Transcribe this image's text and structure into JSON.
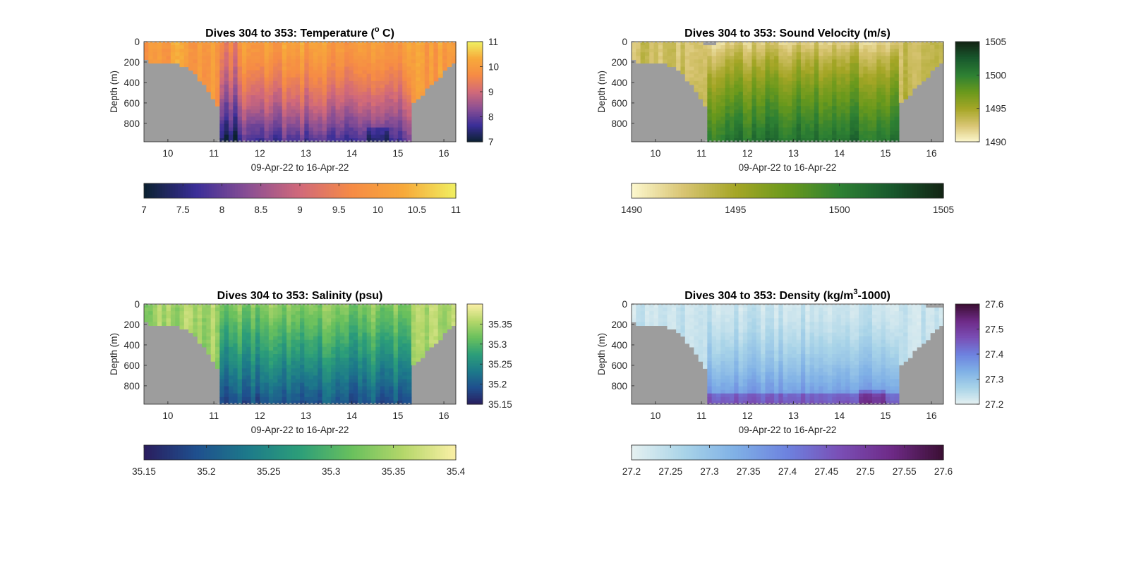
{
  "chart_data": [
    {
      "type": "heatmap",
      "title": "Dives 304 to 353: Temperature (",
      "title_sup": "o",
      "title_tail": " C)",
      "xlabel": "09-Apr-22 to 16-Apr-22",
      "ylabel": "Depth (m)",
      "xlim": [
        9.48,
        16.26
      ],
      "ylim": [
        0,
        980
      ],
      "y_reversed": true,
      "x_ticks": [
        "10",
        "11",
        "12",
        "13",
        "14",
        "15",
        "16"
      ],
      "y_ticks": [
        "0",
        "200",
        "400",
        "600",
        "800"
      ],
      "colormap": [
        "#0b2130",
        "#3a2e98",
        "#8a4f94",
        "#d1697a",
        "#f68b45",
        "#f7a93a",
        "#f0ef61"
      ],
      "clim": [
        7,
        11
      ],
      "field": "temperature",
      "colorbar_right": {
        "ticks": [
          "7",
          "8",
          "9",
          "10",
          "11"
        ],
        "values": [
          7,
          8,
          9,
          10,
          11
        ]
      },
      "colorbar_bottom": {
        "ticks": [
          "7",
          "7.5",
          "8",
          "8.5",
          "9",
          "9.5",
          "10",
          "10.5",
          "11"
        ],
        "values": [
          7,
          7.5,
          8,
          8.5,
          9,
          9.5,
          10,
          10.5,
          11
        ]
      }
    },
    {
      "type": "heatmap",
      "title": "Dives 304 to 353: Sound Velocity (m/s)",
      "title_sup": "",
      "title_tail": "",
      "xlabel": "09-Apr-22 to 16-Apr-22",
      "ylabel": "Depth (m)",
      "xlim": [
        9.48,
        16.26
      ],
      "ylim": [
        0,
        980
      ],
      "y_reversed": true,
      "x_ticks": [
        "10",
        "11",
        "12",
        "13",
        "14",
        "15",
        "16"
      ],
      "y_ticks": [
        "0",
        "200",
        "400",
        "600",
        "800"
      ],
      "colormap": [
        "#fdf8cf",
        "#d8c472",
        "#a5a626",
        "#6a991c",
        "#2e8133",
        "#18592d",
        "#132414"
      ],
      "clim": [
        1490,
        1505
      ],
      "field": "sound_velocity",
      "colorbar_right": {
        "ticks": [
          "1490",
          "1495",
          "1500",
          "1505"
        ],
        "values": [
          1490,
          1495,
          1500,
          1505
        ]
      },
      "colorbar_bottom": {
        "ticks": [
          "1490",
          "1495",
          "1500",
          "1505"
        ],
        "values": [
          1490,
          1495,
          1500,
          1505
        ]
      }
    },
    {
      "type": "heatmap",
      "title": "Dives 304 to 353: Salinity (psu)",
      "title_sup": "",
      "title_tail": "",
      "xlabel": "09-Apr-22 to 16-Apr-22",
      "ylabel": "Depth (m)",
      "xlim": [
        9.48,
        16.26
      ],
      "ylim": [
        0,
        980
      ],
      "y_reversed": true,
      "x_ticks": [
        "10",
        "11",
        "12",
        "13",
        "14",
        "15",
        "16"
      ],
      "y_ticks": [
        "0",
        "200",
        "400",
        "600",
        "800"
      ],
      "colormap": [
        "#2a1d5e",
        "#1f4f8e",
        "#1d7a8a",
        "#2c9e79",
        "#69c05d",
        "#b5d76a",
        "#fbf0a6"
      ],
      "clim": [
        35.15,
        35.4
      ],
      "field": "salinity",
      "colorbar_right": {
        "ticks": [
          "35.15",
          "35.2",
          "35.25",
          "35.3",
          "35.35"
        ],
        "values": [
          35.15,
          35.2,
          35.25,
          35.3,
          35.35
        ]
      },
      "colorbar_bottom": {
        "ticks": [
          "35.15",
          "35.2",
          "35.25",
          "35.3",
          "35.35",
          "35.4"
        ],
        "values": [
          35.15,
          35.2,
          35.25,
          35.3,
          35.35,
          35.4
        ]
      }
    },
    {
      "type": "heatmap",
      "title": "Dives 304 to 353: Density (kg/m",
      "title_sup": "3",
      "title_tail": "-1000)",
      "xlabel": "09-Apr-22 to 16-Apr-22",
      "ylabel": "Depth (m)",
      "xlim": [
        9.48,
        16.26
      ],
      "ylim": [
        0,
        980
      ],
      "y_reversed": true,
      "x_ticks": [
        "10",
        "11",
        "12",
        "13",
        "14",
        "15",
        "16"
      ],
      "y_ticks": [
        "0",
        "200",
        "400",
        "600",
        "800"
      ],
      "colormap": [
        "#e6f1f1",
        "#a9d4e8",
        "#7fb0e6",
        "#6d82df",
        "#7a4fb6",
        "#6e2a87",
        "#3b0f33"
      ],
      "clim": [
        27.2,
        27.6
      ],
      "field": "density",
      "colorbar_right": {
        "ticks": [
          "27.2",
          "27.3",
          "27.4",
          "27.5",
          "27.6"
        ],
        "values": [
          27.2,
          27.3,
          27.4,
          27.5,
          27.6
        ]
      },
      "colorbar_bottom": {
        "ticks": [
          "27.2",
          "27.25",
          "27.3",
          "27.35",
          "27.4",
          "27.45",
          "27.5",
          "27.55",
          "27.6"
        ],
        "values": [
          27.2,
          27.25,
          27.3,
          27.35,
          27.4,
          27.45,
          27.5,
          27.55,
          27.6
        ]
      }
    }
  ],
  "mask_color": "#9d9d9d"
}
